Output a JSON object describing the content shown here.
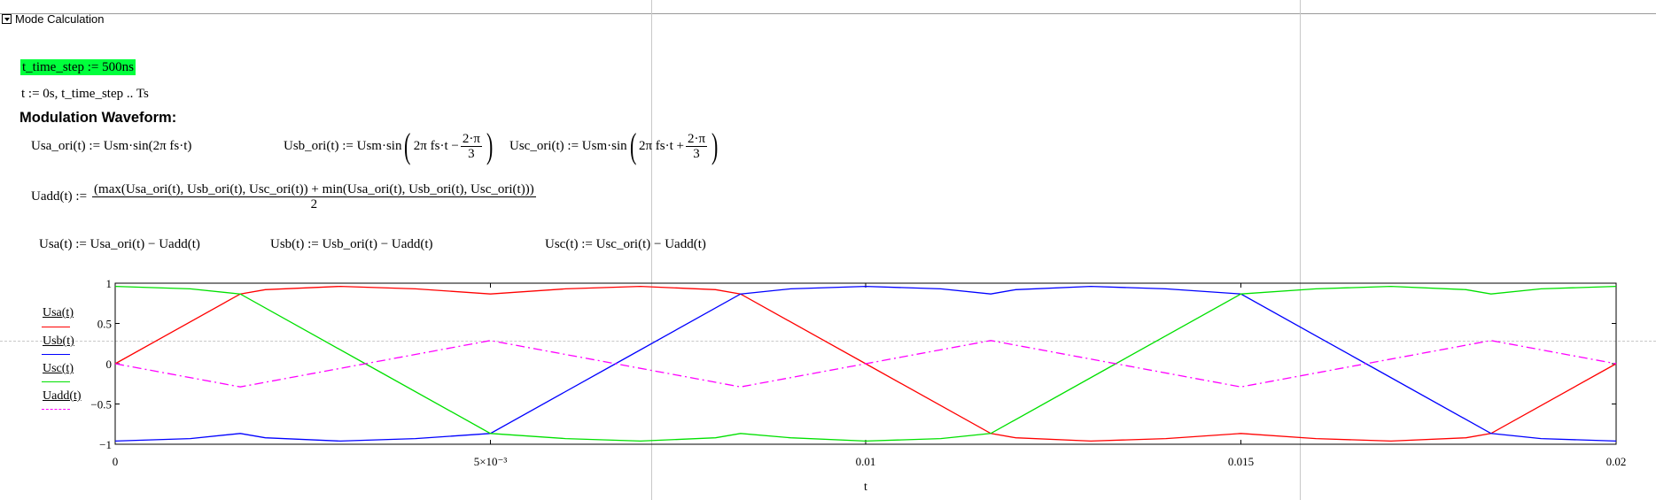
{
  "region": {
    "title": "Mode Calculation"
  },
  "defs": {
    "time_step": "t_time_step := 500ns",
    "t_range": "t := 0s, t_time_step .. Ts"
  },
  "heading": "Modulation Waveform:",
  "eq1": {
    "usa_lhs": "Usa_ori(t) := Usm·sin(2π fs·t)",
    "usb_lhs": "Usb_ori(t) := Usm·sin",
    "usb_arg": "2π fs·t −",
    "usb_num": "2·π",
    "usb_den": "3",
    "usc_lhs": "Usc_ori(t) := Usm·sin",
    "usc_arg": "2π fs·t +",
    "usc_num": "2·π",
    "usc_den": "3"
  },
  "eq2": {
    "lhs": "Uadd(t) :=",
    "num": "(max(Usa_ori(t), Usb_ori(t), Usc_ori(t)) + min(Usa_ori(t), Usb_ori(t), Usc_ori(t)))",
    "den": "2"
  },
  "eq3": {
    "usa": "Usa(t) := Usa_ori(t) − Uadd(t)",
    "usb": "Usb(t) := Usb_ori(t) − Uadd(t)",
    "usc": "Usc(t) := Usc_ori(t) − Uadd(t)"
  },
  "chart_data": {
    "type": "line",
    "xlabel": "t",
    "xlim": [
      0,
      0.02
    ],
    "ylim": [
      -1,
      1
    ],
    "x_ticks": [
      "0",
      "5×10⁻³",
      "0.01",
      "0.015",
      "0.02"
    ],
    "y_ticks": [
      "1",
      "0.5",
      "0",
      "−0.5",
      "−1"
    ],
    "series": [
      {
        "name": "Usa(t)",
        "color": "#ff0000",
        "style": "solid",
        "x": [
          0,
          0.001667,
          0.002,
          0.003,
          0.004,
          0.005,
          0.006,
          0.007,
          0.008,
          0.008333,
          0.01,
          0.011667,
          0.012,
          0.013,
          0.014,
          0.015,
          0.016,
          0.017,
          0.018,
          0.018333,
          0.02
        ],
        "y": [
          0,
          0.866,
          0.92,
          0.96,
          0.93,
          0.866,
          0.93,
          0.96,
          0.92,
          0.866,
          0,
          -0.866,
          -0.92,
          -0.96,
          -0.93,
          -0.866,
          -0.93,
          -0.96,
          -0.92,
          -0.866,
          0
        ]
      },
      {
        "name": "Usb(t)",
        "color": "#0000ff",
        "style": "solid",
        "x": [
          0,
          0.001,
          0.001667,
          0.002,
          0.003,
          0.004,
          0.005,
          0.006667,
          0.008333,
          0.009,
          0.01,
          0.011,
          0.011667,
          0.012,
          0.013,
          0.014,
          0.015,
          0.016667,
          0.018333,
          0.019,
          0.02
        ],
        "y": [
          -0.96,
          -0.93,
          -0.866,
          -0.92,
          -0.96,
          -0.93,
          -0.866,
          0,
          0.866,
          0.93,
          0.96,
          0.93,
          0.866,
          0.92,
          0.96,
          0.93,
          0.866,
          0,
          -0.866,
          -0.93,
          -0.96
        ]
      },
      {
        "name": "Usc(t)",
        "color": "#00e000",
        "style": "solid",
        "x": [
          0,
          0.001,
          0.001667,
          0.003333,
          0.005,
          0.006,
          0.007,
          0.008,
          0.008333,
          0.009,
          0.01,
          0.011,
          0.011667,
          0.013333,
          0.015,
          0.016,
          0.017,
          0.018,
          0.018333,
          0.019,
          0.02
        ],
        "y": [
          0.96,
          0.93,
          0.866,
          0,
          -0.866,
          -0.93,
          -0.96,
          -0.92,
          -0.866,
          -0.92,
          -0.96,
          -0.93,
          -0.866,
          0,
          0.866,
          0.93,
          0.96,
          0.92,
          0.866,
          0.93,
          0.96
        ]
      },
      {
        "name": "Uadd(t)",
        "color": "#ff00ff",
        "style": "dash-dot",
        "x": [
          0,
          0.001667,
          0.005,
          0.008333,
          0.011667,
          0.015,
          0.018333,
          0.02
        ],
        "y": [
          0,
          -0.288,
          0.288,
          -0.288,
          0.288,
          -0.288,
          0.288,
          0
        ]
      }
    ]
  }
}
